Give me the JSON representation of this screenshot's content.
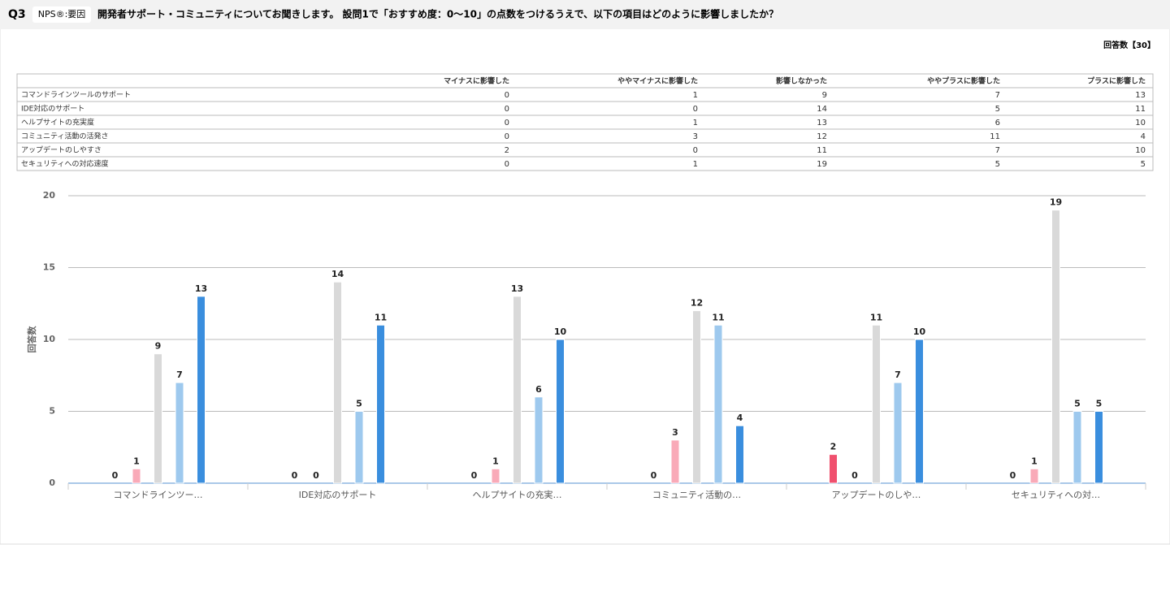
{
  "header": {
    "q": "Q3",
    "badge": "NPS®:要因",
    "title": "開発者サポート・コミュニティについてお聞きします。 設問1で「おすすめ度：0〜10」の点数をつけるうえで、以下の項目はどのように影響しましたか？"
  },
  "response_count": "回答数【30】",
  "table": {
    "columns": [
      "マイナスに影響した",
      "ややマイナスに影響した",
      "影響しなかった",
      "ややプラスに影響した",
      "プラスに影響した"
    ],
    "rows": [
      "コマンドラインツールのサポート",
      "IDE対応のサポート",
      "ヘルプサイトの充実度",
      "コミュニティ活動の活発さ",
      "アップデートのしやすさ",
      "セキュリティへの対応速度"
    ]
  },
  "chart_data": {
    "type": "bar",
    "y_label": "回答数",
    "categories": [
      "コマンドラインツー…",
      "IDE対応のサポート",
      "ヘルプサイトの充実…",
      "コミュニティ活動の…",
      "アップデートのしや…",
      "セキュリティへの対…"
    ],
    "series": [
      {
        "color": "#f0506e",
        "values": [
          0,
          0,
          0,
          0,
          2,
          0
        ]
      },
      {
        "color": "#f9aab8",
        "values": [
          1,
          0,
          1,
          3,
          0,
          1
        ]
      },
      {
        "color": "#d9d9d9",
        "values": [
          9,
          14,
          13,
          12,
          11,
          19
        ]
      },
      {
        "color": "#9ec9ee",
        "values": [
          7,
          5,
          6,
          11,
          7,
          5
        ]
      },
      {
        "color": "#3a8ede",
        "values": [
          13,
          11,
          10,
          4,
          10,
          5
        ]
      }
    ],
    "ylim": [
      0,
      20
    ],
    "yticks": [
      0,
      5,
      10,
      15,
      20
    ],
    "grid": true
  }
}
